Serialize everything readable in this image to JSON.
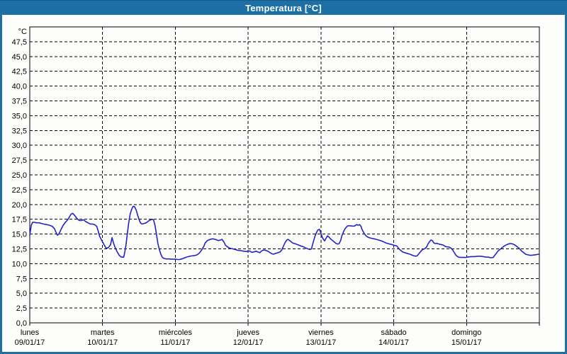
{
  "window": {
    "title": "Temperatura [°C]",
    "titlebar_color": "#1d6fa4",
    "frame_color": "#1d6fa4",
    "background_color": "#fdfefb"
  },
  "chart_data": {
    "type": "line",
    "title": "Temperatura [°C]",
    "grid": "dashed",
    "legend": "none",
    "y_axis": {
      "unit_label": "°C",
      "min": 0,
      "max": 50,
      "tick_step": 2.5,
      "tick_labels": [
        "0,0",
        "2,5",
        "5,0",
        "7,5",
        "10,0",
        "12,5",
        "15,0",
        "17,5",
        "20,0",
        "22,5",
        "25,0",
        "27,5",
        "30,0",
        "32,5",
        "35,0",
        "37,5",
        "40,0",
        "42,5",
        "45,0",
        "47,5"
      ],
      "grid_color": "#000000"
    },
    "x_axis": {
      "min_day": 0,
      "max_day": 7,
      "labels": [
        {
          "weekday": "lunes",
          "date": "09/01/17"
        },
        {
          "weekday": "martes",
          "date": "10/01/17"
        },
        {
          "weekday": "miércoles",
          "date": "11/01/17"
        },
        {
          "weekday": "jueves",
          "date": "12/01/17"
        },
        {
          "weekday": "viernes",
          "date": "13/01/17"
        },
        {
          "weekday": "sábado",
          "date": "14/01/17"
        },
        {
          "weekday": "domingo",
          "date": "15/01/17"
        }
      ],
      "grid_color": "#000000"
    },
    "series": [
      {
        "name": "Temperatura",
        "color": "#2222cc",
        "points": [
          [
            0,
            14.8
          ],
          [
            0.02,
            16.5
          ],
          [
            0.04,
            17
          ],
          [
            0.06,
            17
          ],
          [
            0.09,
            16.9
          ],
          [
            0.13,
            16.9
          ],
          [
            0.16,
            16.8
          ],
          [
            0.19,
            16.7
          ],
          [
            0.23,
            16.6
          ],
          [
            0.27,
            16.5
          ],
          [
            0.31,
            16.3
          ],
          [
            0.34,
            15.9
          ],
          [
            0.36,
            15.3
          ],
          [
            0.38,
            14.8
          ],
          [
            0.4,
            15
          ],
          [
            0.43,
            15.8
          ],
          [
            0.46,
            16.5
          ],
          [
            0.49,
            17
          ],
          [
            0.52,
            17.4
          ],
          [
            0.55,
            18
          ],
          [
            0.57,
            18.4
          ],
          [
            0.59,
            18.5
          ],
          [
            0.62,
            18.1
          ],
          [
            0.65,
            17.6
          ],
          [
            0.68,
            17.3
          ],
          [
            0.71,
            17.3
          ],
          [
            0.74,
            17.4
          ],
          [
            0.77,
            17.1
          ],
          [
            0.8,
            16.9
          ],
          [
            0.83,
            16.7
          ],
          [
            0.86,
            16.7
          ],
          [
            0.89,
            16.6
          ],
          [
            0.92,
            16.3
          ],
          [
            0.94,
            15.5
          ],
          [
            0.96,
            14.6
          ],
          [
            0.99,
            13.9
          ],
          [
            1.02,
            13.2
          ],
          [
            1.05,
            12.6
          ],
          [
            1.08,
            12.7
          ],
          [
            1.11,
            13.2
          ],
          [
            1.13,
            14.4
          ],
          [
            1.15,
            13.5
          ],
          [
            1.17,
            12.8
          ],
          [
            1.2,
            12
          ],
          [
            1.23,
            11.4
          ],
          [
            1.26,
            11.1
          ],
          [
            1.29,
            11.1
          ],
          [
            1.3,
            11.6
          ],
          [
            1.32,
            13
          ],
          [
            1.34,
            15
          ],
          [
            1.36,
            17
          ],
          [
            1.38,
            18.4
          ],
          [
            1.4,
            19.2
          ],
          [
            1.42,
            19.7
          ],
          [
            1.44,
            19.6
          ],
          [
            1.46,
            19.1
          ],
          [
            1.48,
            18.3
          ],
          [
            1.5,
            17.5
          ],
          [
            1.52,
            16.9
          ],
          [
            1.54,
            16.7
          ],
          [
            1.57,
            16.8
          ],
          [
            1.6,
            16.9
          ],
          [
            1.63,
            17.2
          ],
          [
            1.66,
            17.4
          ],
          [
            1.68,
            17.5
          ],
          [
            1.7,
            17.4
          ],
          [
            1.72,
            16.5
          ],
          [
            1.74,
            15
          ],
          [
            1.76,
            13.4
          ],
          [
            1.78,
            12.4
          ],
          [
            1.8,
            11.6
          ],
          [
            1.82,
            11.1
          ],
          [
            1.84,
            10.9
          ],
          [
            1.87,
            10.8
          ],
          [
            1.91,
            10.8
          ],
          [
            1.95,
            10.75
          ],
          [
            1.99,
            10.75
          ],
          [
            2.03,
            10.7
          ],
          [
            2.06,
            10.7
          ],
          [
            2.1,
            10.85
          ],
          [
            2.14,
            11.05
          ],
          [
            2.18,
            11.2
          ],
          [
            2.22,
            11.3
          ],
          [
            2.26,
            11.35
          ],
          [
            2.3,
            11.5
          ],
          [
            2.33,
            11.8
          ],
          [
            2.36,
            12.3
          ],
          [
            2.39,
            12.9
          ],
          [
            2.41,
            13.5
          ],
          [
            2.44,
            13.9
          ],
          [
            2.48,
            14.1
          ],
          [
            2.51,
            14.2
          ],
          [
            2.55,
            14.1
          ],
          [
            2.59,
            13.9
          ],
          [
            2.62,
            14
          ],
          [
            2.64,
            14.1
          ],
          [
            2.67,
            13.6
          ],
          [
            2.69,
            13.1
          ],
          [
            2.72,
            12.8
          ],
          [
            2.75,
            12.6
          ],
          [
            2.79,
            12.5
          ],
          [
            2.82,
            12.4
          ],
          [
            2.86,
            12.25
          ],
          [
            2.9,
            12.2
          ],
          [
            2.94,
            12.1
          ],
          [
            2.98,
            12.05
          ],
          [
            3.02,
            12.15
          ],
          [
            3.05,
            11.9
          ],
          [
            3.08,
            12
          ],
          [
            3.11,
            12.1
          ],
          [
            3.14,
            11.95
          ],
          [
            3.16,
            11.85
          ],
          [
            3.18,
            12.1
          ],
          [
            3.21,
            12.3
          ],
          [
            3.24,
            12.25
          ],
          [
            3.27,
            12.1
          ],
          [
            3.3,
            11.85
          ],
          [
            3.33,
            11.65
          ],
          [
            3.35,
            11.6
          ],
          [
            3.38,
            11.75
          ],
          [
            3.41,
            11.85
          ],
          [
            3.44,
            12
          ],
          [
            3.46,
            12.3
          ],
          [
            3.48,
            12.8
          ],
          [
            3.5,
            13.4
          ],
          [
            3.52,
            13.8
          ],
          [
            3.53,
            14
          ],
          [
            3.55,
            14.1
          ],
          [
            3.58,
            13.8
          ],
          [
            3.61,
            13.5
          ],
          [
            3.65,
            13.35
          ],
          [
            3.68,
            13.2
          ],
          [
            3.72,
            13
          ],
          [
            3.76,
            12.85
          ],
          [
            3.79,
            12.65
          ],
          [
            3.82,
            12.5
          ],
          [
            3.85,
            12.4
          ],
          [
            3.87,
            12.5
          ],
          [
            3.88,
            13
          ],
          [
            3.9,
            13.9
          ],
          [
            3.92,
            14.7
          ],
          [
            3.94,
            15.3
          ],
          [
            3.96,
            15.7
          ],
          [
            3.98,
            15.8
          ],
          [
            4,
            15.1
          ],
          [
            4.02,
            14.4
          ],
          [
            4.04,
            14
          ],
          [
            4.05,
            13.85
          ],
          [
            4.07,
            14.3
          ],
          [
            4.09,
            14.7
          ],
          [
            4.11,
            14.5
          ],
          [
            4.13,
            14.2
          ],
          [
            4.15,
            14
          ],
          [
            4.18,
            13.7
          ],
          [
            4.21,
            13.4
          ],
          [
            4.23,
            13.3
          ],
          [
            4.25,
            13.4
          ],
          [
            4.27,
            13.9
          ],
          [
            4.29,
            14.8
          ],
          [
            4.31,
            15.4
          ],
          [
            4.33,
            15.9
          ],
          [
            4.35,
            16.2
          ],
          [
            4.37,
            16.4
          ],
          [
            4.4,
            16.4
          ],
          [
            4.43,
            16.35
          ],
          [
            4.46,
            16.35
          ],
          [
            4.49,
            16.6
          ],
          [
            4.51,
            16.5
          ],
          [
            4.53,
            16.6
          ],
          [
            4.55,
            16.3
          ],
          [
            4.56,
            15.9
          ],
          [
            4.58,
            15.4
          ],
          [
            4.6,
            15
          ],
          [
            4.62,
            14.7
          ],
          [
            4.64,
            14.5
          ],
          [
            4.66,
            14.4
          ],
          [
            4.69,
            14.3
          ],
          [
            4.73,
            14.2
          ],
          [
            4.76,
            14.1
          ],
          [
            4.79,
            14
          ],
          [
            4.83,
            13.85
          ],
          [
            4.86,
            13.7
          ],
          [
            4.89,
            13.5
          ],
          [
            4.92,
            13.4
          ],
          [
            4.95,
            13.3
          ],
          [
            4.98,
            13.2
          ],
          [
            5.01,
            13.1
          ],
          [
            5.04,
            13
          ],
          [
            5.06,
            12.7
          ],
          [
            5.08,
            12.4
          ],
          [
            5.1,
            12.2
          ],
          [
            5.12,
            12
          ],
          [
            5.15,
            11.85
          ],
          [
            5.18,
            11.75
          ],
          [
            5.22,
            11.6
          ],
          [
            5.25,
            11.45
          ],
          [
            5.27,
            11.35
          ],
          [
            5.3,
            11.25
          ],
          [
            5.32,
            11.3
          ],
          [
            5.34,
            11.6
          ],
          [
            5.36,
            11.9
          ],
          [
            5.38,
            12.2
          ],
          [
            5.4,
            12.4
          ],
          [
            5.43,
            12.55
          ],
          [
            5.45,
            12.8
          ],
          [
            5.47,
            13.3
          ],
          [
            5.49,
            13.7
          ],
          [
            5.51,
            14
          ],
          [
            5.53,
            13.9
          ],
          [
            5.55,
            13.5
          ],
          [
            5.57,
            13.4
          ],
          [
            5.59,
            13.45
          ],
          [
            5.61,
            13.35
          ],
          [
            5.64,
            13.25
          ],
          [
            5.68,
            13.15
          ],
          [
            5.71,
            12.9
          ],
          [
            5.73,
            12.85
          ],
          [
            5.76,
            12.8
          ],
          [
            5.79,
            12.6
          ],
          [
            5.81,
            12.3
          ],
          [
            5.83,
            11.9
          ],
          [
            5.85,
            11.5
          ],
          [
            5.87,
            11.25
          ],
          [
            5.89,
            11.1
          ],
          [
            5.92,
            11.05
          ],
          [
            5.96,
            11.05
          ],
          [
            5.99,
            11.05
          ],
          [
            6.03,
            11.15
          ],
          [
            6.07,
            11.2
          ],
          [
            6.11,
            11.2
          ],
          [
            6.15,
            11.25
          ],
          [
            6.19,
            11.25
          ],
          [
            6.23,
            11.2
          ],
          [
            6.27,
            11.1
          ],
          [
            6.3,
            11.1
          ],
          [
            6.33,
            11
          ],
          [
            6.35,
            11
          ],
          [
            6.37,
            11.1
          ],
          [
            6.38,
            11.3
          ],
          [
            6.4,
            11.6
          ],
          [
            6.43,
            12.1
          ],
          [
            6.46,
            12.4
          ],
          [
            6.49,
            12.7
          ],
          [
            6.52,
            13
          ],
          [
            6.55,
            13.2
          ],
          [
            6.58,
            13.35
          ],
          [
            6.61,
            13.4
          ],
          [
            6.64,
            13.3
          ],
          [
            6.67,
            13.1
          ],
          [
            6.7,
            12.8
          ],
          [
            6.73,
            12.5
          ],
          [
            6.75,
            12.2
          ],
          [
            6.78,
            11.9
          ],
          [
            6.81,
            11.6
          ],
          [
            6.84,
            11.5
          ],
          [
            6.88,
            11.4
          ],
          [
            6.91,
            11.45
          ],
          [
            6.94,
            11.5
          ],
          [
            6.97,
            11.55
          ],
          [
            6.99,
            11.6
          ]
        ]
      }
    ]
  }
}
